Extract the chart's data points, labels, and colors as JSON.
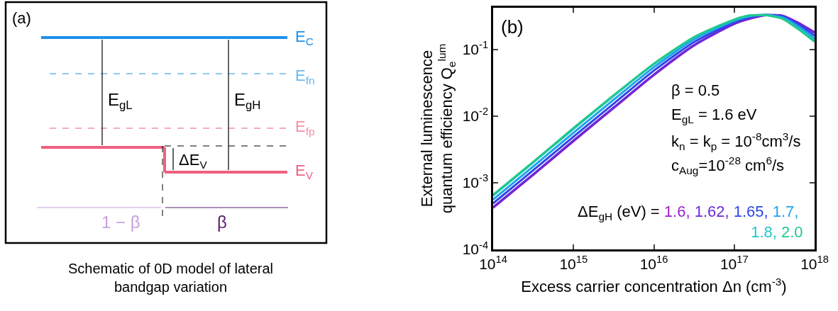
{
  "chart_data": [
    {
      "type": "other",
      "annotations": [
        "(a)",
        "E$_{C}$",
        "E$_{fn}$",
        "E$_{fp}$",
        "E$_{V}$",
        "E$_{gL}$",
        "E$_{gH}$",
        "ΔE$_{V}$",
        "1 − β",
        "β",
        "Schematic of 0D model of lateral\nbandgap variation"
      ]
    },
    {
      "type": "line",
      "xlabel": "Excess carrier concentration Δn (cm$^{-3}$)",
      "ylabel": "External luminescence\nquantum efficiency Q$_{e}$$^{lum}$",
      "legend_title": "ΔE$_{gH}$ (eV) =",
      "legend": "bottom right",
      "log": "xy",
      "xlim": [
        100000000000000.0,
        1e+18
      ],
      "ylim": [
        0.0001,
        0.42
      ],
      "xticks": [
        {
          "value": 100000000000000.0,
          "label": "10$^{14}$"
        },
        {
          "value": 1000000000000000.0,
          "label": "10$^{15}$"
        },
        {
          "value": 1e+16,
          "label": "10$^{16}$"
        },
        {
          "value": 1e+17,
          "label": "10$^{17}$"
        },
        {
          "value": 1e+18,
          "label": "10$^{18}$"
        }
      ],
      "yticks": [
        {
          "value": 0.0001,
          "label": "10$^{-4}$"
        },
        {
          "value": 0.001,
          "label": "10$^{-3}$"
        },
        {
          "value": 0.01,
          "label": "10$^{-2}$"
        },
        {
          "value": 0.1,
          "label": "10$^{-1}$"
        }
      ],
      "annotations": [
        "(b)",
        "β = 0.5",
        "E$_{gL}$ = 1.6 eV",
        "k$_{n}$ = k$_{p}$ = 10$^{-8}$cm$^{3}$/s",
        "c$_{Aug}$=10$^{-28}$ cm$^{6}$/s"
      ],
      "x": [
        100000000000000.0,
        320000000000000.0,
        1000000000000000.0,
        3200000000000000.0,
        1e+16,
        3.2e+16,
        1e+17,
        1.6e+17,
        2.5e+17,
        4e+17,
        6.3e+17,
        1e+18
      ],
      "series": [
        {
          "name": "1.6,",
          "color": "#9a1fd0",
          "values": [
            0.00042,
            0.00133,
            0.0042,
            0.0133,
            0.041,
            0.115,
            0.24,
            0.29,
            0.325,
            0.32,
            0.25,
            0.18
          ]
        },
        {
          "name": "1.62,",
          "color": "#6a2ad8",
          "values": [
            0.00043,
            0.00136,
            0.0043,
            0.0136,
            0.042,
            0.117,
            0.243,
            0.293,
            0.326,
            0.318,
            0.247,
            0.176
          ]
        },
        {
          "name": "1.65,",
          "color": "#2d46e8",
          "values": [
            0.00049,
            0.00156,
            0.0049,
            0.0155,
            0.048,
            0.13,
            0.255,
            0.305,
            0.328,
            0.31,
            0.235,
            0.16
          ]
        },
        {
          "name": "1.7,",
          "color": "#1ea0f0",
          "values": [
            0.00056,
            0.00178,
            0.0056,
            0.0178,
            0.054,
            0.142,
            0.268,
            0.315,
            0.328,
            0.3,
            0.22,
            0.145
          ]
        },
        {
          "name": "1.8,",
          "color": "#1ec8c8",
          "values": [
            0.00064,
            0.00204,
            0.0064,
            0.0203,
            0.06,
            0.152,
            0.278,
            0.322,
            0.326,
            0.29,
            0.205,
            0.135
          ]
        },
        {
          "name": "2.0",
          "color": "#22c88c",
          "values": [
            0.00066,
            0.00208,
            0.0066,
            0.0207,
            0.061,
            0.154,
            0.28,
            0.324,
            0.325,
            0.287,
            0.2,
            0.13
          ]
        }
      ]
    }
  ]
}
